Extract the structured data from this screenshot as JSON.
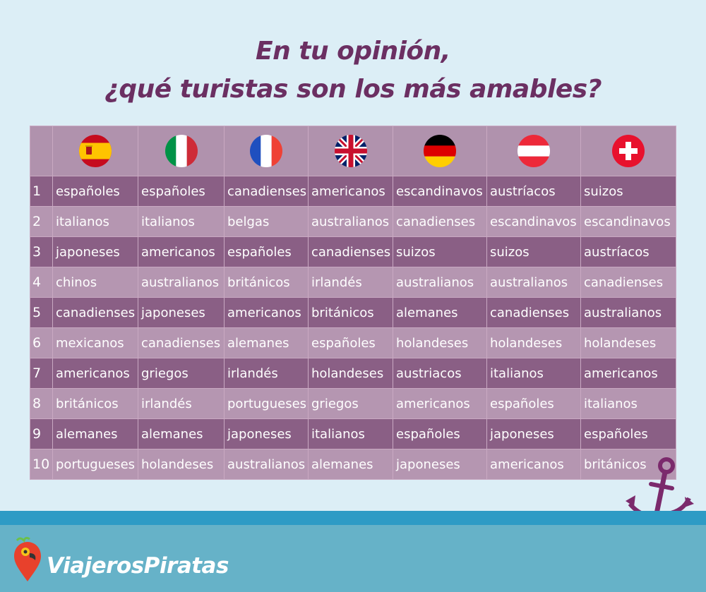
{
  "title": {
    "line1": "En tu opinión,",
    "line2": "¿qué turistas son los más amables?"
  },
  "columns": [
    {
      "country": "spain",
      "icon": "spain-flag-icon"
    },
    {
      "country": "italy",
      "icon": "italy-flag-icon"
    },
    {
      "country": "france",
      "icon": "france-flag-icon"
    },
    {
      "country": "united-kingdom",
      "icon": "uk-flag-icon"
    },
    {
      "country": "germany",
      "icon": "germany-flag-icon"
    },
    {
      "country": "austria",
      "icon": "austria-flag-icon"
    },
    {
      "country": "switzerland",
      "icon": "switzerland-flag-icon"
    }
  ],
  "rows": [
    {
      "rank": "1",
      "cells": [
        "españoles",
        "españoles",
        "canadienses",
        "americanos",
        "escandinavos",
        "austríacos",
        "suizos"
      ]
    },
    {
      "rank": "2",
      "cells": [
        "italianos",
        "italianos",
        "belgas",
        "australianos",
        "canadienses",
        "escandinavos",
        "escandinavos"
      ]
    },
    {
      "rank": "3",
      "cells": [
        "japoneses",
        "americanos",
        "españoles",
        "canadienses",
        "suizos",
        "suizos",
        "austríacos"
      ]
    },
    {
      "rank": "4",
      "cells": [
        "chinos",
        "australianos",
        "británicos",
        "irlandés",
        "australianos",
        "australianos",
        "canadienses"
      ]
    },
    {
      "rank": "5",
      "cells": [
        "canadienses",
        "japoneses",
        "americanos",
        "británicos",
        "alemanes",
        "canadienses",
        "australianos"
      ]
    },
    {
      "rank": "6",
      "cells": [
        "mexicanos",
        "canadienses",
        "alemanes",
        "españoles",
        "holandeses",
        "holandeses",
        "holandeses"
      ]
    },
    {
      "rank": "7",
      "cells": [
        "americanos",
        "griegos",
        "irlandés",
        "holandeses",
        "austriacos",
        "italianos",
        "americanos"
      ]
    },
    {
      "rank": "8",
      "cells": [
        "británicos",
        "irlandés",
        "portugueses",
        "griegos",
        "americanos",
        "españoles",
        "italianos"
      ]
    },
    {
      "rank": "9",
      "cells": [
        "alemanes",
        "alemanes",
        "japoneses",
        "italianos",
        "españoles",
        "japoneses",
        "españoles"
      ]
    },
    {
      "rank": "10",
      "cells": [
        "portugueses",
        "holandeses",
        "australianos",
        "alemanes",
        "japoneses",
        "americanos",
        "británicos"
      ]
    }
  ],
  "brand": {
    "name": "ViajerosPiratas"
  },
  "colors": {
    "title": "#6b2f62",
    "row_dark": "#8a5f85",
    "row_light": "#b596b1",
    "header": "#b092ad",
    "background": "#dceef6",
    "stripe": "#2e9bc5",
    "footer": "#66b2c8",
    "anchor": "#7b2a6c"
  }
}
